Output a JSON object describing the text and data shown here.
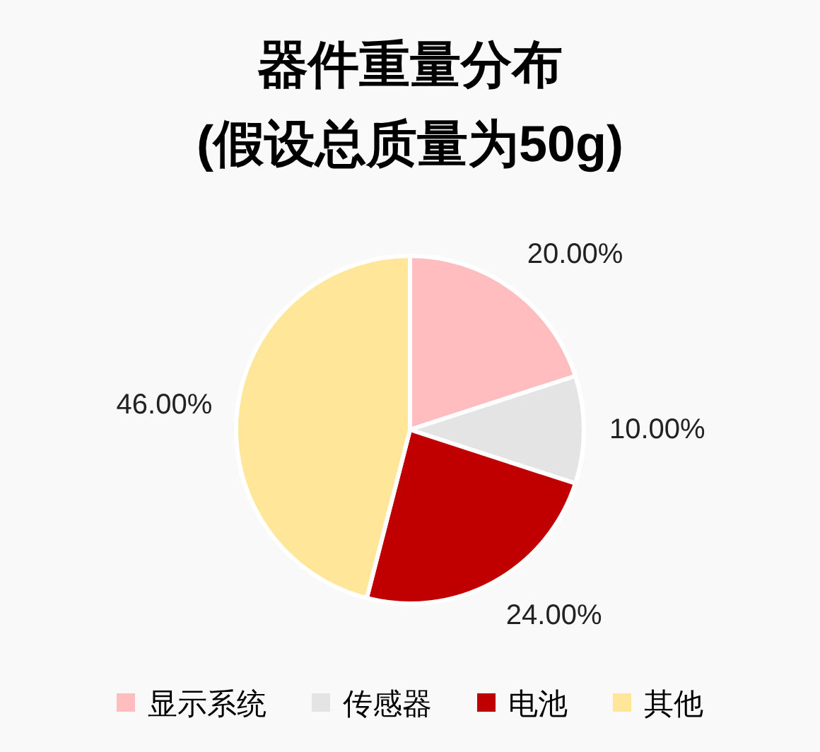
{
  "chart_data": {
    "type": "pie",
    "title": "器件重量分布",
    "subtitle": "(假设总质量为50g)",
    "categories": [
      "显示系统",
      "传感器",
      "电池",
      "其他"
    ],
    "values": [
      20,
      10,
      24,
      46
    ],
    "colors": [
      "#ffbdc0",
      "#e4e4e4",
      "#c00000",
      "#ffe699"
    ],
    "value_labels": [
      "20.00%",
      "10.00%",
      "24.00%",
      "46.00%"
    ],
    "legend": "bottom"
  }
}
